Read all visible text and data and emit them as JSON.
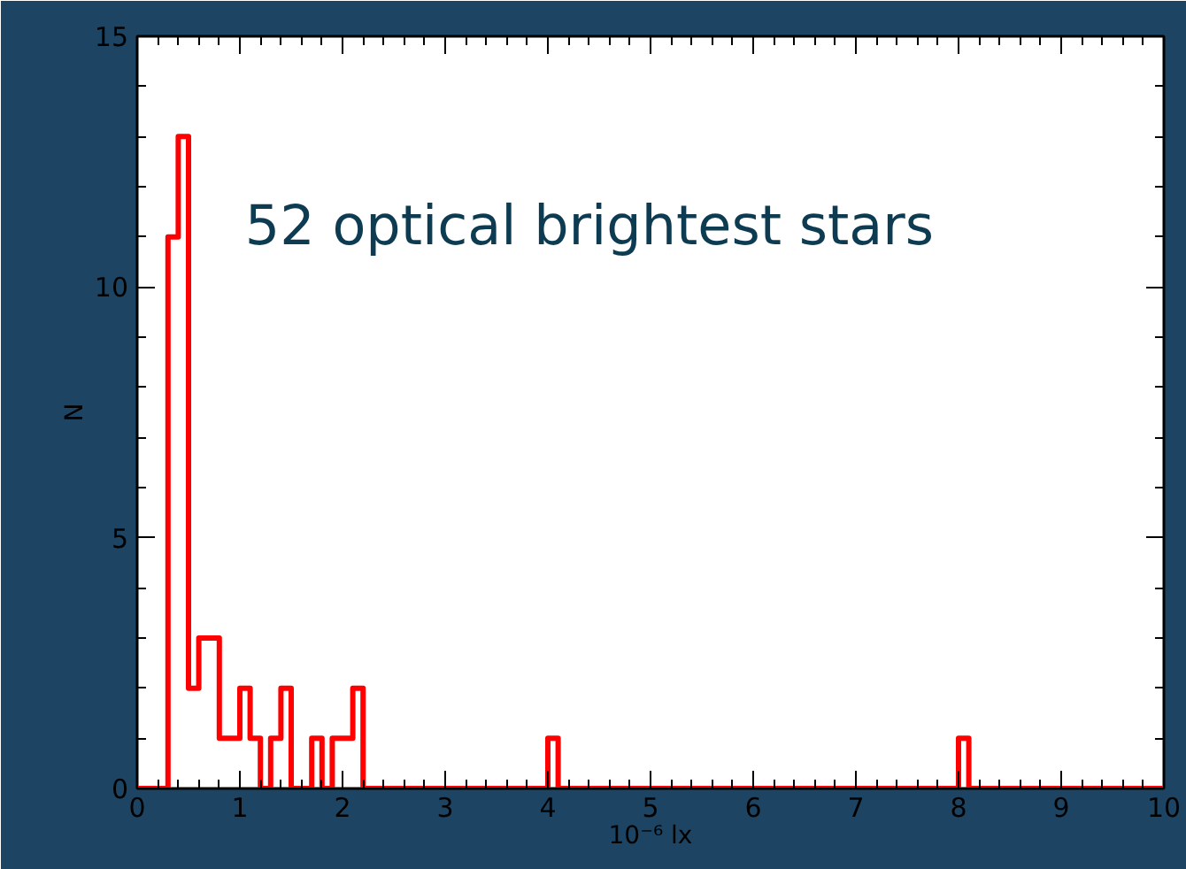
{
  "chart_data": {
    "type": "histogram",
    "xlabel": "10⁻⁶ lx",
    "ylabel": "N",
    "annotations": [
      "52 optical brightest stars"
    ],
    "bins": [
      0,
      0.1,
      0.2,
      0.3,
      0.4,
      0.5,
      0.6,
      0.7,
      0.8,
      0.9,
      1,
      1.1,
      1.2,
      1.3,
      1.4,
      1.5,
      1.6,
      1.7,
      1.8,
      1.9,
      2,
      2.1,
      2.2,
      2.3,
      2.4,
      2.5,
      2.6,
      2.7,
      2.8,
      2.9,
      3,
      3.1,
      3.2,
      3.3,
      3.4,
      3.5,
      3.6,
      3.7,
      3.8,
      3.9,
      4,
      4.1,
      4.2,
      4.3,
      4.4,
      4.5,
      4.6,
      4.7,
      4.8,
      4.9,
      5,
      5.1,
      5.2,
      5.3,
      5.4,
      5.5,
      5.6,
      5.7,
      5.8,
      5.9,
      6,
      6.1,
      6.2,
      6.3,
      6.4,
      6.5,
      6.6,
      6.7,
      6.8,
      6.9,
      7,
      7.1,
      7.2,
      7.3,
      7.4,
      7.5,
      7.6,
      7.7,
      7.8,
      7.9,
      8,
      8.1,
      8.2,
      8.3,
      8.4,
      8.5,
      8.6,
      8.7,
      8.8,
      8.9,
      9,
      9.1,
      9.2,
      9.3,
      9.4,
      9.5,
      9.6,
      9.7,
      9.8,
      9.9,
      10
    ],
    "values": [
      0,
      0,
      0,
      11,
      13,
      2,
      3,
      3,
      1,
      1,
      2,
      1,
      0,
      1,
      2,
      0,
      0,
      1,
      0,
      1,
      1,
      2,
      0,
      0,
      0,
      0,
      0,
      0,
      0,
      0,
      0,
      0,
      0,
      0,
      0,
      0,
      0,
      0,
      0,
      0,
      1,
      0,
      0,
      0,
      0,
      0,
      0,
      0,
      0,
      0,
      0,
      0,
      0,
      0,
      0,
      0,
      0,
      0,
      0,
      0,
      0,
      0,
      0,
      0,
      0,
      0,
      0,
      0,
      0,
      0,
      0,
      0,
      0,
      0,
      0,
      0,
      0,
      0,
      0,
      0,
      1,
      0,
      0,
      0,
      0,
      0,
      0,
      0,
      0,
      0,
      0,
      0,
      0,
      0,
      0,
      0,
      0,
      0,
      0,
      0
    ],
    "color": "#ff0000",
    "xlim": [
      0,
      10
    ],
    "ylim": [
      0,
      15
    ],
    "xticks": [
      0,
      1,
      2,
      3,
      4,
      5,
      6,
      7,
      8,
      9,
      10
    ],
    "yticks": [
      0,
      5,
      10,
      15
    ],
    "grid": false
  }
}
